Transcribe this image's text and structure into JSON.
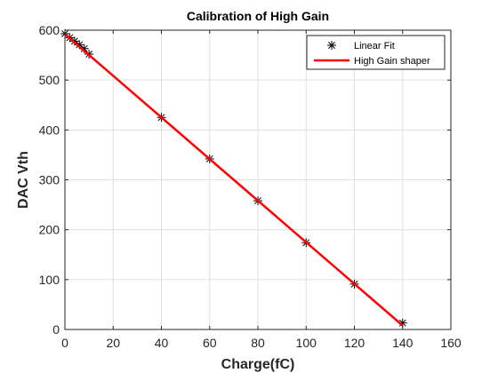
{
  "chart_data": {
    "type": "line",
    "title": "Calibration of High Gain",
    "xlabel": "Charge(fC)",
    "ylabel": "DAC Vth",
    "xlim": [
      0,
      160
    ],
    "ylim": [
      0,
      600
    ],
    "xticks": [
      0,
      20,
      40,
      60,
      80,
      100,
      120,
      140,
      160
    ],
    "yticks": [
      0,
      100,
      200,
      300,
      400,
      500,
      600
    ],
    "grid": true,
    "legend_position": "top-right",
    "series": [
      {
        "name": "Linear Fit",
        "style": "markers",
        "marker": "asterisk",
        "color": "#000000",
        "x": [
          0,
          2,
          4,
          6,
          8,
          10,
          40,
          60,
          80,
          100,
          120,
          140
        ],
        "y": [
          593,
          585,
          578,
          571,
          563,
          552,
          425,
          342,
          258,
          174,
          91,
          13
        ]
      },
      {
        "name": "High Gain shaper",
        "style": "line",
        "color": "#ff0000",
        "x": [
          0,
          140
        ],
        "y": [
          592,
          8
        ]
      }
    ]
  }
}
